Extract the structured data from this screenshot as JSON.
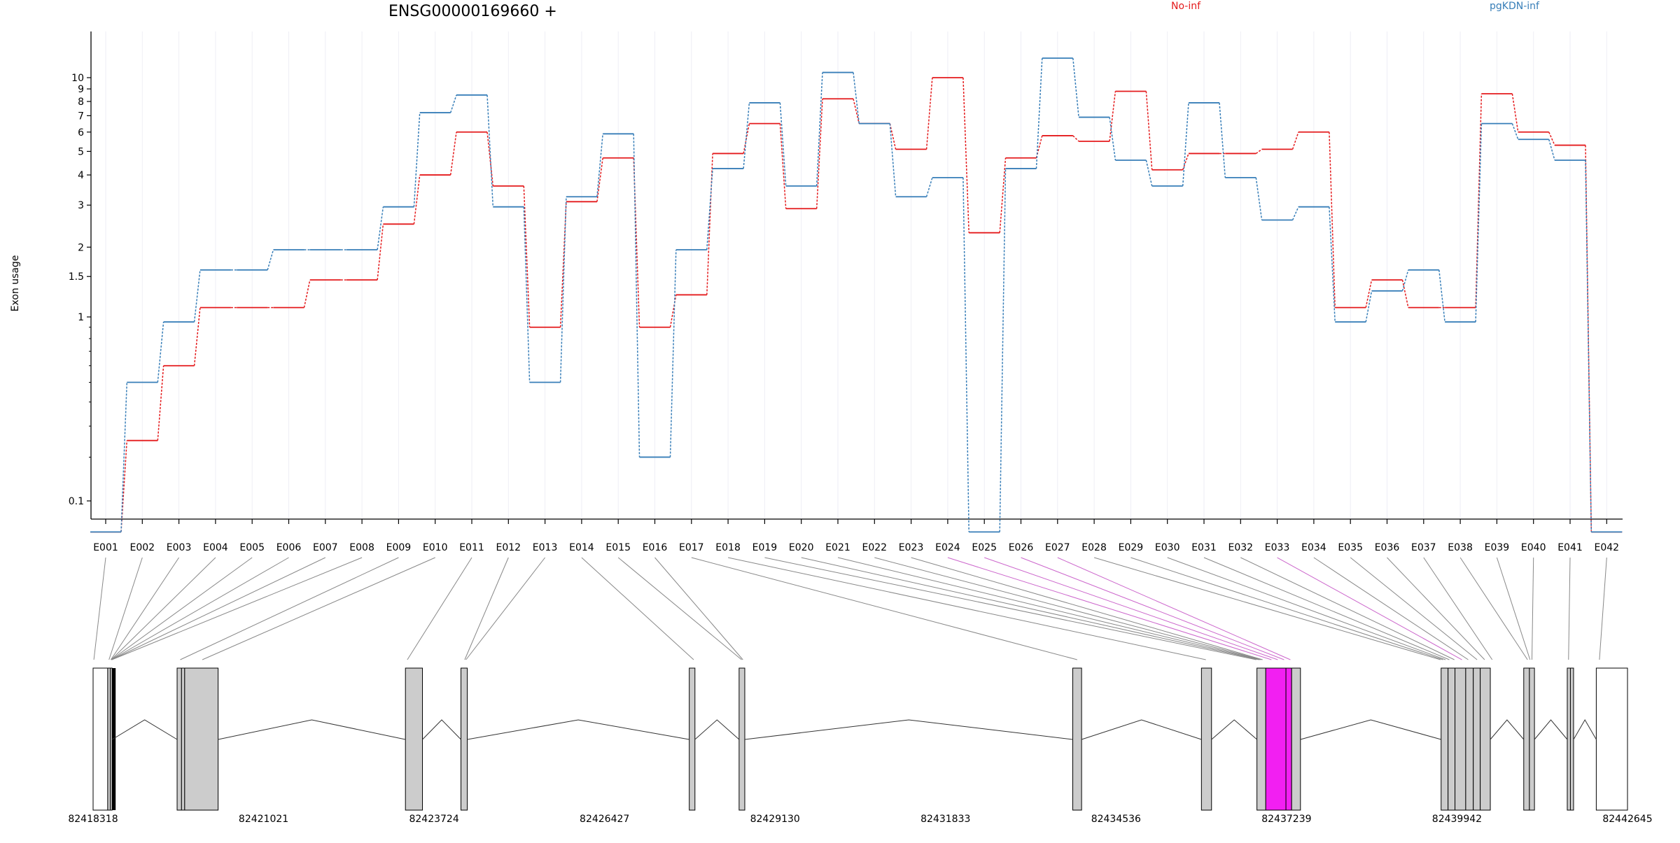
{
  "chart_data": {
    "type": "line",
    "title": "ENSG00000169660 +",
    "ylabel": "Exon usage",
    "xlabel": "",
    "y_scale": "log(x+0.1)",
    "grid": "vertical",
    "legend": "top",
    "ytick_labels": [
      "0.1",
      "1",
      "1.5",
      "2",
      "3",
      "4",
      "5",
      "6",
      "7",
      "8",
      "9",
      "10"
    ],
    "categories": [
      "E001",
      "E002",
      "E003",
      "E004",
      "E005",
      "E006",
      "E007",
      "E008",
      "E009",
      "E010",
      "E011",
      "E012",
      "E013",
      "E014",
      "E015",
      "E016",
      "E017",
      "E018",
      "E019",
      "E020",
      "E021",
      "E022",
      "E023",
      "E024",
      "E025",
      "E026",
      "E027",
      "E028",
      "E029",
      "E030",
      "E031",
      "E032",
      "E033",
      "E034",
      "E035",
      "E036",
      "E037",
      "E038",
      "E039",
      "E040",
      "E041",
      "E042"
    ],
    "series": [
      {
        "name": "No-inf",
        "color": "#e41a1c",
        "values": [
          0.05,
          0.25,
          0.6,
          1.1,
          1.1,
          1.1,
          1.45,
          1.45,
          2.5,
          4.0,
          6.0,
          3.6,
          0.9,
          3.1,
          4.7,
          0.9,
          1.25,
          4.9,
          6.5,
          2.9,
          8.2,
          6.5,
          5.1,
          10.0,
          2.3,
          4.7,
          5.8,
          5.5,
          8.8,
          4.2,
          4.9,
          4.9,
          5.1,
          6.0,
          1.1,
          1.45,
          1.1,
          1.1,
          8.6,
          6.0,
          5.3,
          0.05
        ]
      },
      {
        "name": "pgKDN-inf",
        "color": "#377eb8",
        "values": [
          0.05,
          0.5,
          0.95,
          1.6,
          1.6,
          1.95,
          1.95,
          1.95,
          2.95,
          7.2,
          8.5,
          2.95,
          0.5,
          3.25,
          5.9,
          0.2,
          1.95,
          4.25,
          7.9,
          3.6,
          10.5,
          6.5,
          3.25,
          3.9,
          0.05,
          4.25,
          12.0,
          6.9,
          4.6,
          3.6,
          7.9,
          3.9,
          2.6,
          2.95,
          0.95,
          1.3,
          1.6,
          0.95,
          6.5,
          5.6,
          4.6,
          0.05
        ]
      }
    ],
    "genomic_ticks": [
      "82418318",
      "82421021",
      "82423724",
      "82426427",
      "82429130",
      "82431833",
      "82434536",
      "82437239",
      "82439942",
      "82442645"
    ],
    "highlight_exon": "E033",
    "highlight_color": "#f21ff2"
  }
}
